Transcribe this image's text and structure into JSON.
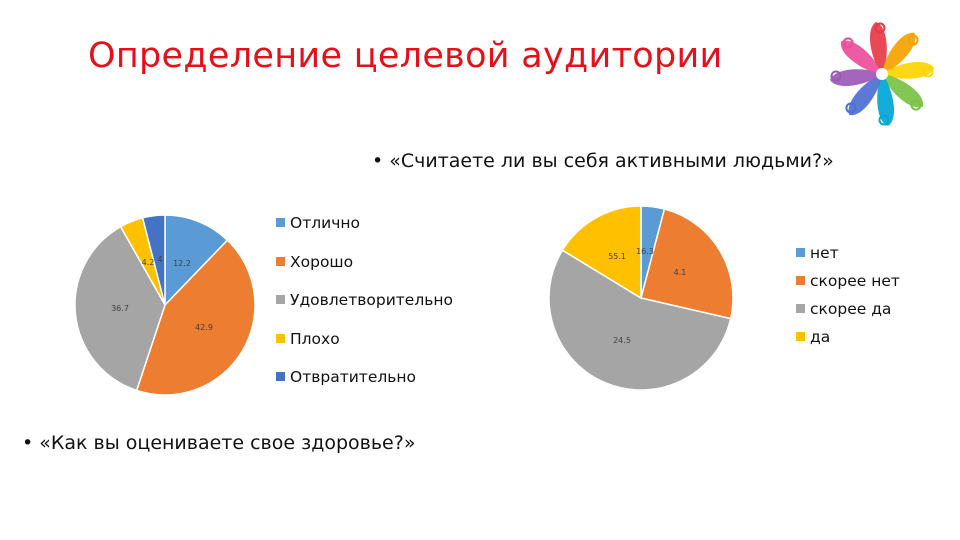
{
  "slide": {
    "title": "Определение целевой аудитории",
    "question_active": "• «Считаете ли вы себя активными людьми?»",
    "question_health": "• «Как вы оцениваете свое здоровье?»"
  },
  "chart_data": [
    {
      "type": "pie",
      "categories": [
        "Отлично",
        "Хорошо",
        "Удовлетворительно",
        "Плохо",
        "Отвратительно"
      ],
      "values": [
        12.2,
        42.9,
        36.7,
        4.2,
        4
      ],
      "data_labels": [
        "12.2",
        "42.9",
        "36.7",
        "4.2",
        "4"
      ],
      "colors": [
        "#5b9bd5",
        "#ed7d31",
        "#a5a5a5",
        "#ffc000",
        "#4472c4"
      ],
      "legend": "right"
    },
    {
      "type": "pie",
      "categories": [
        "нет",
        "скорее нет",
        "скорее да",
        "да"
      ],
      "values": [
        4.1,
        24.5,
        55.1,
        16.3
      ],
      "data_labels": [
        "4.1",
        "24.5",
        "55.1",
        "16.3"
      ],
      "colors": [
        "#5b9bd5",
        "#ed7d31",
        "#a5a5a5",
        "#ffc000"
      ],
      "legend": "right"
    }
  ],
  "logo": {
    "colors": [
      "#e63946",
      "#f4a300",
      "#ffd400",
      "#7ac143",
      "#00a6d6",
      "#4d6fd1",
      "#9b59b6",
      "#ec4d9a"
    ],
    "icon": "people-circle-logo"
  }
}
